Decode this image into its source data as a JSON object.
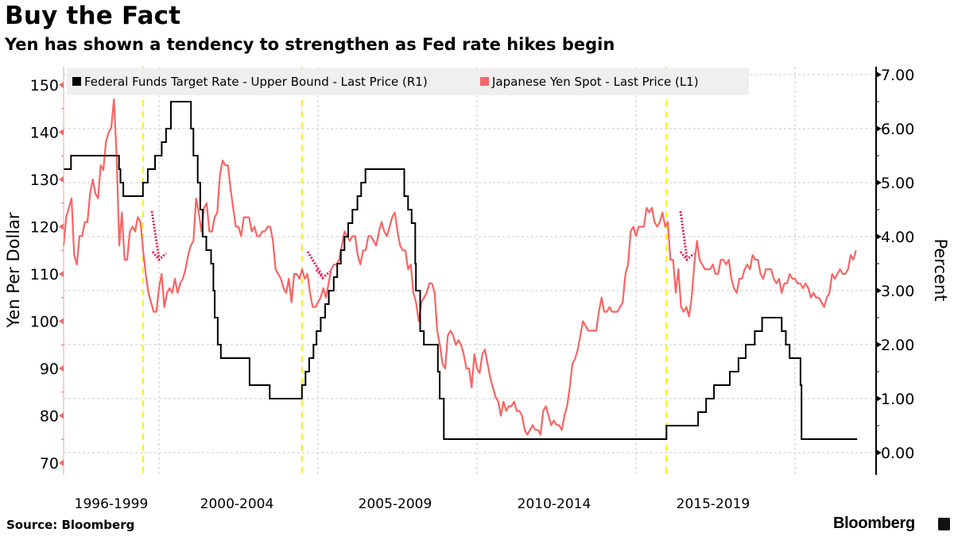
{
  "header": {
    "title": "Buy the Fact",
    "subtitle": "Yen has shown a tendency to strengthen as Fed rate hikes begin"
  },
  "footer": {
    "source": "Source: Bloomberg",
    "brand": "Bloomberg"
  },
  "chart_data": {
    "type": "line",
    "title": "Buy the Fact",
    "subtitle": "Yen has shown a tendency to strengthen as Fed rate hikes begin",
    "x_tick_labels": [
      "1996-1999",
      "2000-2004",
      "2005-2009",
      "2010-2014",
      "2015-2019"
    ],
    "left_axis": {
      "label": "Yen Per Dollar",
      "range": [
        70,
        150
      ],
      "ticks": [
        "150",
        "140",
        "130",
        "120",
        "110",
        "100",
        "90",
        "80",
        "70"
      ]
    },
    "right_axis": {
      "label": "Percent",
      "range": [
        0,
        7
      ],
      "ticks": [
        "7.00",
        "6.00",
        "5.00",
        "4.00",
        "3.00",
        "2.00",
        "1.00",
        "0.00"
      ]
    },
    "grid": true,
    "legend_placement": "top",
    "colors": {
      "fed": "#000000",
      "yen": "#f86464",
      "hike_lines": "#f5f500",
      "arrows": "#e8174f"
    },
    "highlight_dates": [
      "1999-06-30",
      "2004-06-30",
      "2015-12-16"
    ],
    "series": [
      {
        "name": "Federal Funds Target Rate - Upper Bound - Last Price (R1)",
        "axis": "right",
        "steps": [
          [
            "1997-01-01",
            5.25
          ],
          [
            "1997-03-25",
            5.5
          ],
          [
            "1998-09-29",
            5.25
          ],
          [
            "1998-10-15",
            5.0
          ],
          [
            "1998-11-17",
            4.75
          ],
          [
            "1999-06-30",
            5.0
          ],
          [
            "1999-08-24",
            5.25
          ],
          [
            "1999-11-16",
            5.5
          ],
          [
            "2000-02-02",
            5.75
          ],
          [
            "2000-03-21",
            6.0
          ],
          [
            "2000-05-16",
            6.5
          ],
          [
            "2001-01-03",
            6.0
          ],
          [
            "2001-01-31",
            5.5
          ],
          [
            "2001-03-20",
            5.0
          ],
          [
            "2001-04-18",
            4.5
          ],
          [
            "2001-05-15",
            4.0
          ],
          [
            "2001-06-27",
            3.75
          ],
          [
            "2001-08-21",
            3.5
          ],
          [
            "2001-09-17",
            3.0
          ],
          [
            "2001-10-02",
            2.5
          ],
          [
            "2001-11-06",
            2.0
          ],
          [
            "2001-12-11",
            1.75
          ],
          [
            "2002-11-06",
            1.25
          ],
          [
            "2003-06-25",
            1.0
          ],
          [
            "2004-06-30",
            1.25
          ],
          [
            "2004-08-10",
            1.5
          ],
          [
            "2004-09-21",
            1.75
          ],
          [
            "2004-11-10",
            2.0
          ],
          [
            "2004-12-14",
            2.25
          ],
          [
            "2005-02-02",
            2.5
          ],
          [
            "2005-03-22",
            2.75
          ],
          [
            "2005-05-03",
            3.0
          ],
          [
            "2005-06-30",
            3.25
          ],
          [
            "2005-08-09",
            3.5
          ],
          [
            "2005-09-20",
            3.75
          ],
          [
            "2005-11-01",
            4.0
          ],
          [
            "2005-12-13",
            4.25
          ],
          [
            "2006-01-31",
            4.5
          ],
          [
            "2006-03-28",
            4.75
          ],
          [
            "2006-05-10",
            5.0
          ],
          [
            "2006-06-29",
            5.25
          ],
          [
            "2007-09-18",
            4.75
          ],
          [
            "2007-10-31",
            4.5
          ],
          [
            "2007-12-11",
            4.25
          ],
          [
            "2008-01-22",
            3.5
          ],
          [
            "2008-01-30",
            3.0
          ],
          [
            "2008-03-18",
            2.25
          ],
          [
            "2008-04-30",
            2.0
          ],
          [
            "2008-10-08",
            1.5
          ],
          [
            "2008-10-29",
            1.0
          ],
          [
            "2008-12-16",
            0.25
          ],
          [
            "2015-12-16",
            0.5
          ],
          [
            "2016-12-14",
            0.75
          ],
          [
            "2017-03-15",
            1.0
          ],
          [
            "2017-06-14",
            1.25
          ],
          [
            "2017-12-13",
            1.5
          ],
          [
            "2018-03-21",
            1.75
          ],
          [
            "2018-06-13",
            2.0
          ],
          [
            "2018-09-26",
            2.25
          ],
          [
            "2018-12-19",
            2.5
          ],
          [
            "2019-07-31",
            2.25
          ],
          [
            "2019-09-18",
            2.0
          ],
          [
            "2019-10-30",
            1.75
          ],
          [
            "2020-03-03",
            1.25
          ],
          [
            "2020-03-15",
            0.25
          ],
          [
            "2021-12-15",
            0.25
          ]
        ]
      },
      {
        "name": "Japanese Yen Spot - Last Price (L1)",
        "axis": "left",
        "monthly": {
          "1997": [
            116,
            122,
            124,
            126,
            114,
            112,
            118,
            118,
            121,
            121,
            127,
            130
          ],
          "1998": [
            127,
            126,
            133,
            132,
            138,
            140,
            141,
            147,
            135,
            116,
            123,
            113
          ],
          "1999": [
            113,
            119,
            120,
            119,
            122,
            121,
            115,
            110,
            106,
            104,
            102,
            102
          ],
          "2000": [
            107,
            110,
            103,
            106,
            107,
            106,
            109,
            106,
            108,
            109,
            111,
            114
          ],
          "2001": [
            116,
            117,
            126,
            123,
            119,
            124,
            125,
            119,
            119,
            122,
            123,
            131
          ],
          "2002": [
            134,
            133,
            133,
            128,
            124,
            120,
            120,
            118,
            122,
            122,
            122,
            119
          ],
          "2003": [
            120,
            118,
            118,
            119,
            119,
            120,
            120,
            117,
            111,
            110,
            109,
            107
          ],
          "2004": [
            106,
            109,
            104,
            110,
            110,
            109,
            111,
            109,
            110,
            106,
            103,
            103
          ],
          "2005": [
            104,
            105,
            107,
            105,
            108,
            111,
            112,
            112,
            113,
            116,
            119,
            118
          ],
          "2006": [
            117,
            118,
            118,
            114,
            112,
            115,
            115,
            118,
            118,
            117,
            116,
            119
          ],
          "2007": [
            121,
            119,
            118,
            120,
            122,
            123,
            119,
            116,
            115,
            115,
            111,
            112
          ],
          "2008": [
            106,
            104,
            100,
            104,
            105,
            106,
            108,
            108,
            106,
            98,
            95,
            91
          ],
          "2009": [
            90,
            97,
            98,
            97,
            95,
            96,
            95,
            93,
            90,
            90,
            86,
            93
          ],
          "2010": [
            90,
            89,
            93,
            94,
            91,
            88,
            86,
            84,
            83,
            80,
            83,
            81
          ],
          "2011": [
            82,
            82,
            83,
            81,
            81,
            80,
            77,
            76,
            77,
            78,
            77,
            77
          ],
          "2012": [
            76,
            81,
            82,
            80,
            78,
            79,
            78,
            78,
            77,
            80,
            82,
            86
          ],
          "2013": [
            91,
            92,
            94,
            97,
            100,
            99,
            98,
            98,
            98,
            98,
            102,
            105
          ],
          "2014": [
            102,
            102,
            103,
            102,
            102,
            102,
            103,
            104,
            110,
            112,
            119,
            120
          ],
          "2015": [
            118,
            120,
            120,
            120,
            124,
            123,
            124,
            121,
            120,
            121,
            123,
            120
          ],
          "2016": [
            121,
            113,
            113,
            106,
            111,
            103,
            102,
            103,
            101,
            105,
            112,
            117
          ],
          "2017": [
            113,
            112,
            111,
            111,
            111,
            112,
            110,
            110,
            113,
            113,
            112,
            113
          ],
          "2018": [
            109,
            107,
            106,
            109,
            109,
            111,
            112,
            111,
            114,
            113,
            113,
            110
          ],
          "2019": [
            109,
            111,
            111,
            111,
            109,
            108,
            109,
            106,
            108,
            108,
            110,
            109
          ],
          "2020": [
            109,
            108,
            108,
            107,
            108,
            107,
            105,
            106,
            105,
            105,
            104,
            103
          ],
          "2021": [
            105,
            106,
            110,
            109,
            110,
            111,
            110,
            110,
            111,
            114,
            113,
            115
          ]
        }
      }
    ]
  }
}
